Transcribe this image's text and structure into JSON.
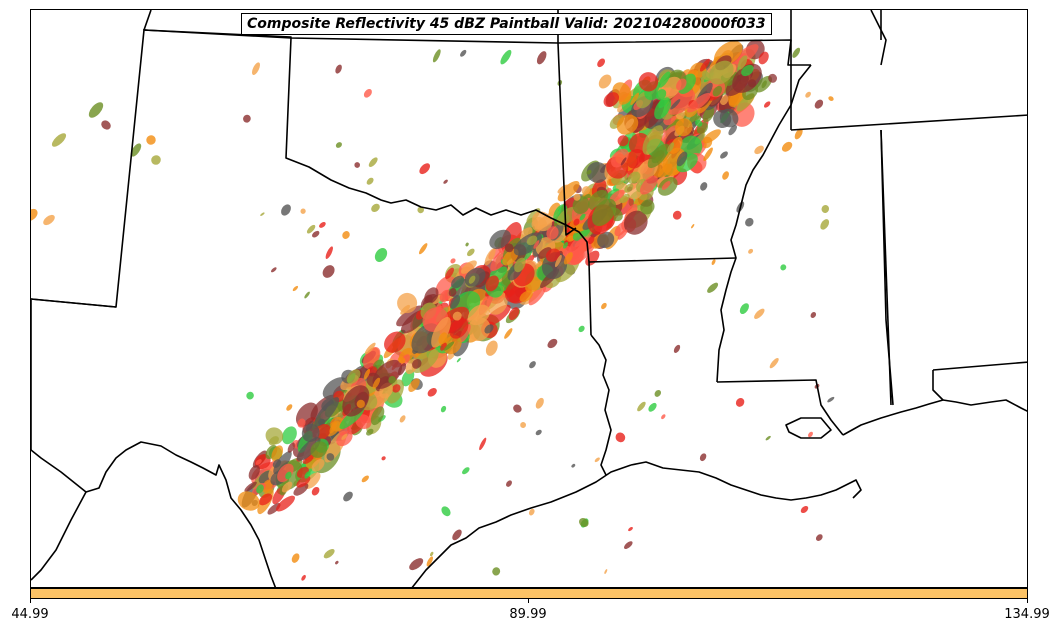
{
  "map": {
    "title": "Composite Reflectivity 45 dBZ Paintball Valid: 202104280000f033",
    "colorbar": {
      "color": "#fcc366",
      "ticks": [
        "44.99",
        "89.99",
        "134.99"
      ]
    },
    "member_colors": [
      "#e8201a",
      "#f28c0f",
      "#8b2e2e",
      "#2ecc40",
      "#a6a83a",
      "#555555",
      "#f4a24a",
      "#ff5a4a",
      "#6b8e23"
    ],
    "background": "#ffffff",
    "boundary_color": "#000000"
  }
}
